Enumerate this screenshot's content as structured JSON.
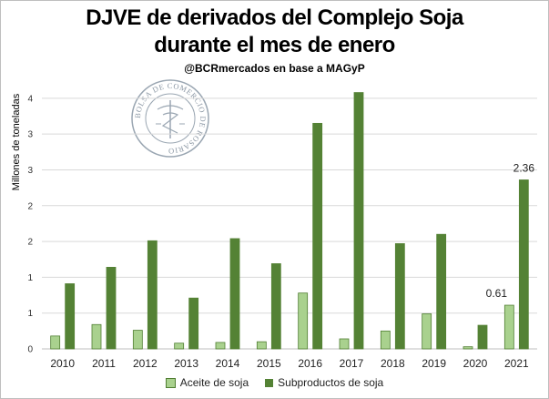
{
  "title_line1": "DJVE de derivados del Complejo Soja",
  "title_line2": "durante el mes de enero",
  "subtitle": "@BCRmercados en base a MAGyP",
  "seal_text": "BOLSA DE COMERCIO DE ROSARIO",
  "colors": {
    "aceite": "#a9d18e",
    "subproductos": "#548235",
    "aceite_border": "#507e32",
    "grid": "#d9d9d9"
  },
  "chart_data": {
    "type": "bar",
    "title": "DJVE de derivados del Complejo Soja durante el mes de enero",
    "xlabel": "",
    "ylabel": "Millones de toneladas",
    "ylim": [
      0,
      3.6
    ],
    "yticks": [
      0,
      0.5,
      1,
      1.5,
      2,
      2.5,
      3,
      3.5
    ],
    "ytick_labels": [
      "0",
      "1",
      "1",
      "2",
      "2",
      "3",
      "3",
      "4"
    ],
    "categories": [
      "2010",
      "2011",
      "2012",
      "2013",
      "2014",
      "2015",
      "2016",
      "2017",
      "2018",
      "2019",
      "2020",
      "2021"
    ],
    "series": [
      {
        "name": "Aceite de soja",
        "values": [
          0.18,
          0.34,
          0.26,
          0.08,
          0.09,
          0.1,
          0.78,
          0.14,
          0.25,
          0.49,
          0.03,
          0.61
        ]
      },
      {
        "name": "Subproductos de soja",
        "values": [
          0.91,
          1.14,
          1.51,
          0.71,
          1.54,
          1.19,
          3.15,
          3.58,
          1.47,
          1.6,
          0.33,
          2.36
        ]
      }
    ],
    "data_labels": [
      {
        "series": "Aceite de soja",
        "category": "2021",
        "text": "0.61"
      },
      {
        "series": "Subproductos de soja",
        "category": "2021",
        "text": "2.36"
      }
    ],
    "grid": true,
    "legend_position": "bottom"
  }
}
